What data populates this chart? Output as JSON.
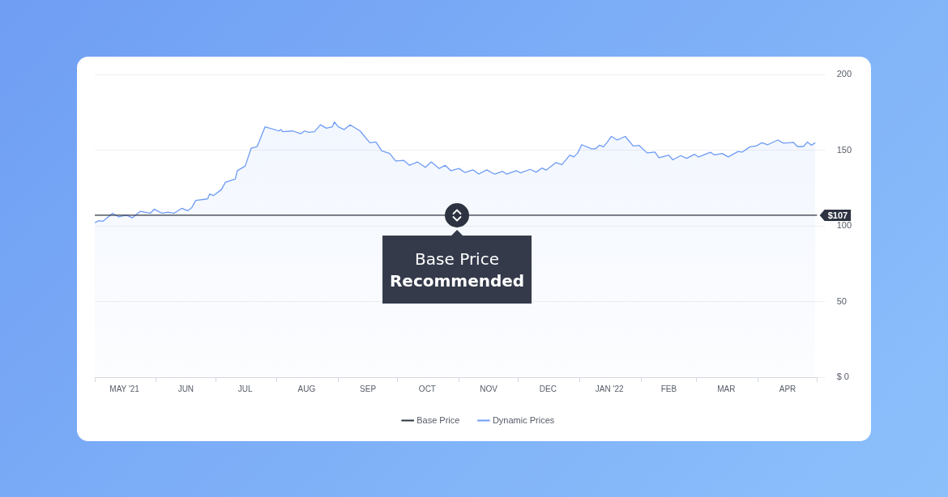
{
  "chart_data": {
    "type": "line",
    "xlim": [
      "2021-05-01",
      "2022-05-01"
    ],
    "xticks": [
      {
        "value": "2021-05-01",
        "label": null
      },
      {
        "value": "2021-05-16",
        "label": "MAY '21"
      },
      {
        "value": "2021-06-01",
        "label": null
      },
      {
        "value": "2021-06-16",
        "label": "JUN"
      },
      {
        "value": "2021-07-01",
        "label": null
      },
      {
        "value": "2021-07-16",
        "label": "JUL"
      },
      {
        "value": "2021-08-01",
        "label": null
      },
      {
        "value": "2021-08-16",
        "label": "AUG"
      },
      {
        "value": "2021-09-01",
        "label": null
      },
      {
        "value": "2021-09-16",
        "label": "SEP"
      },
      {
        "value": "2021-10-01",
        "label": null
      },
      {
        "value": "2021-10-16",
        "label": "OCT"
      },
      {
        "value": "2021-11-01",
        "label": null
      },
      {
        "value": "2021-11-16",
        "label": "NOV"
      },
      {
        "value": "2021-12-01",
        "label": null
      },
      {
        "value": "2021-12-16",
        "label": "DEC"
      },
      {
        "value": "2022-01-01",
        "label": null
      },
      {
        "value": "2022-01-16",
        "label": "JAN '22"
      },
      {
        "value": "2022-02-01",
        "label": null
      },
      {
        "value": "2022-02-15",
        "label": "FEB"
      },
      {
        "value": "2022-03-01",
        "label": null
      },
      {
        "value": "2022-03-16",
        "label": "MAR"
      },
      {
        "value": "2022-04-01",
        "label": null
      },
      {
        "value": "2022-04-16",
        "label": "APR"
      },
      {
        "value": "2022-05-01",
        "label": null
      }
    ],
    "ylim": [
      0,
      200
    ],
    "yticks": [
      {
        "value": 0,
        "label": "$ 0"
      },
      50,
      100,
      150,
      200
    ],
    "grid": "y",
    "legend": "bottom",
    "marker": "none",
    "series": [
      {
        "name": "Base Price",
        "color": "#2d3340",
        "x": [
          "2021-05-01",
          "2022-05-01"
        ],
        "values": [
          107,
          107
        ]
      },
      {
        "name": "Dynamic Prices",
        "type": "area",
        "color": "#6e9cf5",
        "x": [
          "2021-05-01",
          "2021-05-03",
          "2021-05-05",
          "2021-05-10",
          "2021-05-13",
          "2021-05-17",
          "2021-05-20",
          "2021-05-24",
          "2021-05-29",
          "2021-05-31",
          "2021-06-04",
          "2021-06-07",
          "2021-06-10",
          "2021-06-14",
          "2021-06-17",
          "2021-06-19",
          "2021-06-21",
          "2021-06-27",
          "2021-06-28",
          "2021-06-30",
          "2021-07-04",
          "2021-07-06",
          "2021-07-11",
          "2021-07-12",
          "2021-07-16",
          "2021-07-19",
          "2021-07-22",
          "2021-07-26",
          "2021-08-02",
          "2021-08-03",
          "2021-08-04",
          "2021-08-09",
          "2021-08-13",
          "2021-08-15",
          "2021-08-17",
          "2021-08-20",
          "2021-08-23",
          "2021-08-26",
          "2021-08-29",
          "2021-08-30",
          "2021-09-01",
          "2021-09-04",
          "2021-09-07",
          "2021-09-12",
          "2021-09-17",
          "2021-09-20",
          "2021-09-23",
          "2021-09-27",
          "2021-09-30",
          "2021-10-04",
          "2021-10-07",
          "2021-10-11",
          "2021-10-15",
          "2021-10-18",
          "2021-10-22",
          "2021-10-25",
          "2021-10-28",
          "2021-11-01",
          "2021-11-04",
          "2021-11-08",
          "2021-11-11",
          "2021-11-15",
          "2021-11-19",
          "2021-11-23",
          "2021-11-25",
          "2021-11-30",
          "2021-12-02",
          "2021-12-07",
          "2021-12-10",
          "2021-12-13",
          "2021-12-15",
          "2021-12-20",
          "2021-12-23",
          "2021-12-27",
          "2021-12-29",
          "2021-12-31",
          "2022-01-02",
          "2022-01-07",
          "2022-01-09",
          "2022-01-11",
          "2022-01-13",
          "2022-01-15",
          "2022-01-17",
          "2022-01-20",
          "2022-01-24",
          "2022-01-28",
          "2022-01-31",
          "2022-02-04",
          "2022-02-08",
          "2022-02-10",
          "2022-02-15",
          "2022-02-17",
          "2022-02-21",
          "2022-02-24",
          "2022-02-28",
          "2022-03-02",
          "2022-03-08",
          "2022-03-10",
          "2022-03-14",
          "2022-03-17",
          "2022-03-22",
          "2022-03-24",
          "2022-03-28",
          "2022-03-31",
          "2022-04-03",
          "2022-04-06",
          "2022-04-11",
          "2022-04-14",
          "2022-04-19",
          "2022-04-21",
          "2022-04-24",
          "2022-04-26",
          "2022-04-28",
          "2022-04-30"
        ],
        "values": [
          102,
          103.4,
          103,
          108.3,
          106,
          107,
          105.3,
          109.6,
          108.3,
          111,
          108.3,
          109,
          108.3,
          111.6,
          110,
          112,
          116.8,
          117.8,
          121,
          120,
          124,
          128.8,
          131,
          136.4,
          139.5,
          151.3,
          152.3,
          165.4,
          162.7,
          163.6,
          162.2,
          162.7,
          160.9,
          162.7,
          161.8,
          162.2,
          166.8,
          164.5,
          165.4,
          168.6,
          165.4,
          163.6,
          166.7,
          162.7,
          154.9,
          155.4,
          149.5,
          147.8,
          142.8,
          143.3,
          140,
          142.2,
          138.6,
          142.2,
          137.9,
          140,
          136.4,
          137.9,
          135.2,
          137,
          134.2,
          137,
          134.1,
          136,
          134.2,
          136.4,
          135,
          137.3,
          135.5,
          138.2,
          136.8,
          141.8,
          140.4,
          146.7,
          145.5,
          148.2,
          153.6,
          150.9,
          150.9,
          153.3,
          152.2,
          155.4,
          159.1,
          156.7,
          159.1,
          152.7,
          153.1,
          148.2,
          148.7,
          145,
          146.7,
          143.6,
          146.4,
          144.6,
          147.3,
          145.5,
          148.6,
          146.9,
          147.8,
          145.5,
          149.1,
          148.7,
          152.2,
          152.7,
          154.9,
          153.6,
          156.7,
          154.6,
          155.1,
          152.4,
          152.4,
          155.4,
          153.3,
          154.9
        ]
      }
    ],
    "annotations": [
      {
        "text": "$107",
        "x": "2022-05-01",
        "y": 107
      },
      {
        "text": "Base Price\nRecommended",
        "x": "2021-10-31",
        "y": 107
      }
    ]
  }
}
